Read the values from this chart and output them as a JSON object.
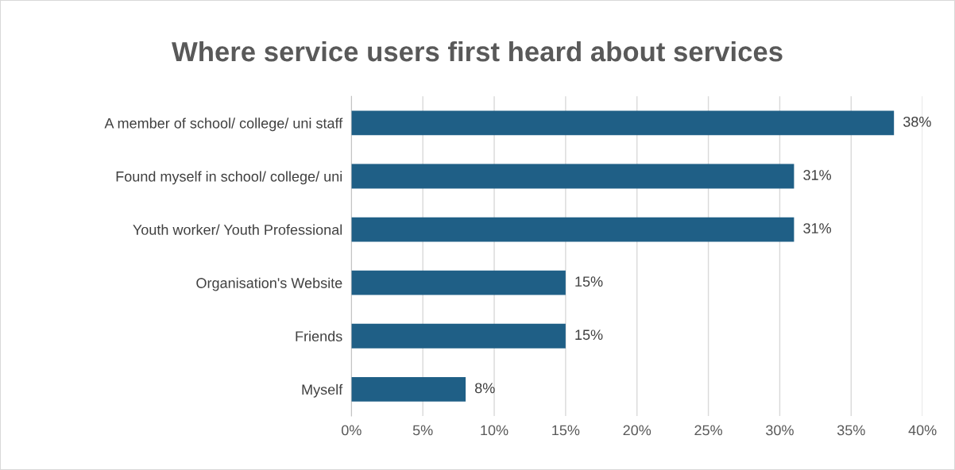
{
  "chart_data": {
    "type": "bar",
    "orientation": "horizontal",
    "title": "Where service users first heard about services",
    "categories": [
      "A member of school/ college/ uni staff",
      "Found myself in school/ college/ uni",
      "Youth worker/ Youth Professional",
      "Organisation's Website",
      "Friends",
      "Myself"
    ],
    "values": [
      38,
      31,
      31,
      15,
      15,
      8
    ],
    "value_labels": [
      "38%",
      "31%",
      "31%",
      "15%",
      "15%",
      "8%"
    ],
    "color": "#1f5f86",
    "xlim": [
      0,
      40
    ],
    "xticks": [
      {
        "value": 0,
        "label": "0%"
      },
      {
        "value": 5,
        "label": "5%"
      },
      {
        "value": 10,
        "label": "10%"
      },
      {
        "value": 15,
        "label": "15%"
      },
      {
        "value": 20,
        "label": "20%"
      },
      {
        "value": 25,
        "label": "25%"
      },
      {
        "value": 30,
        "label": "30%"
      },
      {
        "value": 35,
        "label": "35%"
      },
      {
        "value": 40,
        "label": "40%"
      }
    ],
    "grid": "x"
  }
}
